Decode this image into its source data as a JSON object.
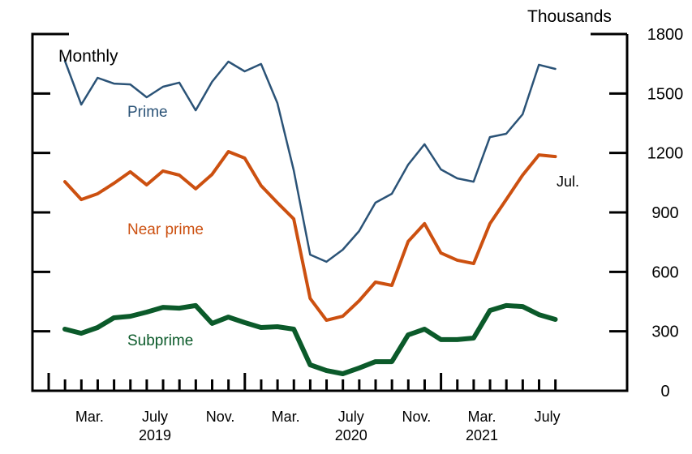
{
  "chart_data": {
    "type": "line",
    "title": "",
    "frequency_label": "Monthly",
    "unit_label": "Thousands",
    "ylabel": "Thousands",
    "xlabel": "",
    "ylim": [
      0,
      1800
    ],
    "y_ticks": [
      0,
      300,
      600,
      900,
      1200,
      1500,
      1800
    ],
    "y_tick_labels": [
      "0",
      "300",
      "600",
      "900",
      "1200",
      "1500",
      "1800"
    ],
    "grid": false,
    "x_month_labels": [
      {
        "month_index": 2,
        "label": "Mar."
      },
      {
        "month_index": 6,
        "label": "July"
      },
      {
        "month_index": 10,
        "label": "Nov."
      },
      {
        "month_index": 14,
        "label": "Mar."
      },
      {
        "month_index": 18,
        "label": "July"
      },
      {
        "month_index": 22,
        "label": "Nov."
      },
      {
        "month_index": 26,
        "label": "Mar."
      },
      {
        "month_index": 30,
        "label": "July"
      }
    ],
    "x_year_labels": [
      {
        "month_index": 6,
        "label": "2019"
      },
      {
        "month_index": 18,
        "label": "2020"
      },
      {
        "month_index": 26,
        "label": "2021"
      }
    ],
    "x_start": "2019-01",
    "x_end": "2021-07",
    "end_annotation": "Jul.",
    "series": [
      {
        "name": "Prime",
        "color": "#2b5377",
        "values": [
          1665,
          1444,
          1579,
          1550,
          1546,
          1481,
          1534,
          1555,
          1415,
          1559,
          1661,
          1612,
          1649,
          1452,
          1112,
          687,
          651,
          712,
          806,
          949,
          994,
          1141,
          1244,
          1117,
          1072,
          1055,
          1280,
          1297,
          1395,
          1645,
          1624
        ]
      },
      {
        "name": "Near prime",
        "color": "#cc5010",
        "values": [
          1055,
          965,
          994,
          1047,
          1105,
          1039,
          1109,
          1088,
          1019,
          1092,
          1207,
          1174,
          1035,
          949,
          867,
          466,
          356,
          376,
          454,
          548,
          532,
          753,
          843,
          695,
          659,
          642,
          843,
          965,
          1088,
          1190,
          1182
        ]
      },
      {
        "name": "Subprime",
        "color": "#0b5a2a",
        "values": [
          311,
          290,
          319,
          368,
          376,
          397,
          421,
          417,
          430,
          340,
          372,
          344,
          319,
          323,
          311,
          131,
          102,
          86,
          115,
          147,
          147,
          282,
          311,
          258,
          258,
          266,
          405,
          430,
          425,
          384,
          360
        ]
      }
    ]
  }
}
